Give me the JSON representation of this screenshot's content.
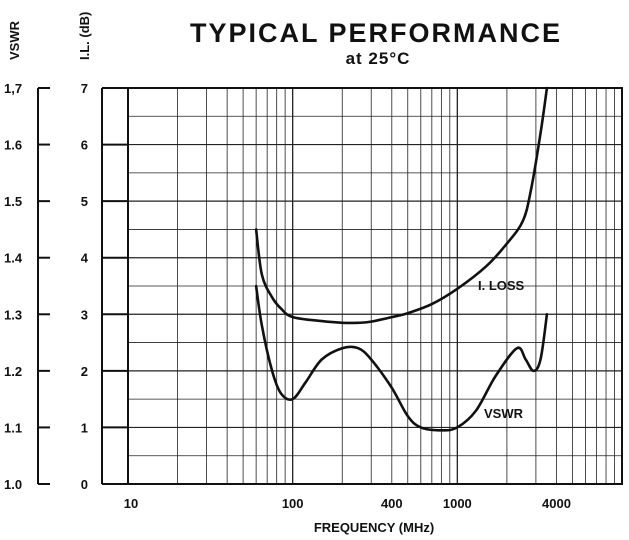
{
  "chart_data": {
    "type": "line",
    "title": "TYPICAL PERFORMANCE",
    "subtitle": "at 25°C",
    "xlabel": "FREQUENCY (MHz)",
    "x_scale": "log",
    "xlim": [
      10,
      10000
    ],
    "x_ticks": [
      10,
      100,
      400,
      1000,
      4000
    ],
    "x_tick_labels": [
      "10",
      "100",
      "400",
      "1000",
      "4000"
    ],
    "y_left_label": "VSWR",
    "y_left_ticks": [
      "1,7",
      "1.6",
      "1.5",
      "1.4",
      "1.3",
      "1.2",
      "1.1",
      "1.0"
    ],
    "y_left_lim": [
      1.0,
      1.7
    ],
    "y_right_label": "I.L. (dB)",
    "y_right_ticks": [
      "7",
      "6",
      "5",
      "4",
      "3",
      "2",
      "1",
      "0"
    ],
    "y_right_lim": [
      0,
      7
    ],
    "grid": true,
    "series": [
      {
        "name": "I. LOSS",
        "axis": "il",
        "points": [
          [
            60,
            4.5
          ],
          [
            65,
            3.7
          ],
          [
            75,
            3.3
          ],
          [
            85,
            3.1
          ],
          [
            100,
            2.95
          ],
          [
            150,
            2.88
          ],
          [
            200,
            2.85
          ],
          [
            250,
            2.85
          ],
          [
            300,
            2.87
          ],
          [
            400,
            2.95
          ],
          [
            500,
            3.02
          ],
          [
            700,
            3.18
          ],
          [
            1000,
            3.45
          ],
          [
            1500,
            3.85
          ],
          [
            2000,
            4.25
          ],
          [
            2500,
            4.65
          ],
          [
            2800,
            5.2
          ],
          [
            3200,
            6.2
          ],
          [
            3500,
            7.0
          ]
        ]
      },
      {
        "name": "VSWR",
        "axis": "vswr",
        "points": [
          [
            60,
            1.35
          ],
          [
            65,
            1.28
          ],
          [
            75,
            1.2
          ],
          [
            85,
            1.16
          ],
          [
            100,
            1.15
          ],
          [
            120,
            1.18
          ],
          [
            150,
            1.22
          ],
          [
            200,
            1.24
          ],
          [
            250,
            1.24
          ],
          [
            300,
            1.22
          ],
          [
            400,
            1.17
          ],
          [
            500,
            1.12
          ],
          [
            600,
            1.1
          ],
          [
            800,
            1.095
          ],
          [
            1000,
            1.1
          ],
          [
            1300,
            1.13
          ],
          [
            1700,
            1.19
          ],
          [
            2300,
            1.24
          ],
          [
            2600,
            1.22
          ],
          [
            2900,
            1.2
          ],
          [
            3200,
            1.22
          ],
          [
            3500,
            1.3
          ]
        ]
      }
    ]
  }
}
